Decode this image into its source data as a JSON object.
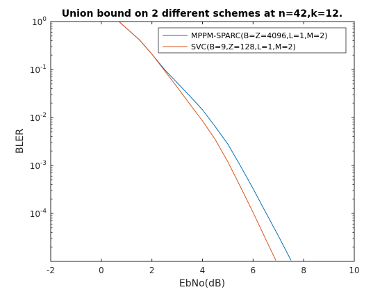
{
  "chart_data": {
    "type": "line",
    "title": "Union bound on 2 different schemes at n=42,k=12.",
    "xlabel": "EbNo(dB)",
    "ylabel": "BLER",
    "x_scale": "linear",
    "y_scale": "log",
    "xlim": [
      -2,
      10
    ],
    "ylim": [
      1e-05,
      1
    ],
    "x_ticks": [
      -2,
      0,
      2,
      4,
      6,
      8,
      10
    ],
    "y_ticks": [
      {
        "value": 1,
        "mantissa": "10",
        "exponent": "0"
      },
      {
        "value": 0.1,
        "mantissa": "10",
        "exponent": "-1"
      },
      {
        "value": 0.01,
        "mantissa": "10",
        "exponent": "-2"
      },
      {
        "value": 0.001,
        "mantissa": "10",
        "exponent": "-3"
      },
      {
        "value": 0.0001,
        "mantissa": "10",
        "exponent": "-4"
      }
    ],
    "grid": false,
    "legend_position": "top-right",
    "series": [
      {
        "name": "MPPM-SPARC(B=Z=4096,L=1,M=2)",
        "color": "#0072BD",
        "x": [
          0.7,
          1.0,
          1.5,
          2.0,
          2.5,
          3.0,
          3.5,
          4.0,
          4.5,
          5.0,
          5.5,
          6.0,
          6.5,
          7.0,
          7.5
        ],
        "y": [
          1.0,
          0.72,
          0.42,
          0.21,
          0.1,
          0.053,
          0.028,
          0.0145,
          0.0065,
          0.0028,
          0.00098,
          0.00033,
          0.000105,
          3.4e-05,
          1.05e-05
        ]
      },
      {
        "name": "SVC(B=9,Z=128,L=1,M=2)",
        "color": "#D95319",
        "x": [
          0.7,
          1.0,
          1.5,
          2.0,
          2.5,
          3.0,
          3.5,
          4.0,
          4.5,
          5.0,
          5.5,
          6.0,
          6.5,
          6.9
        ],
        "y": [
          1.0,
          0.72,
          0.42,
          0.21,
          0.095,
          0.043,
          0.019,
          0.0085,
          0.0035,
          0.0012,
          0.00036,
          0.000105,
          2.9e-05,
          1.05e-05
        ]
      }
    ]
  }
}
